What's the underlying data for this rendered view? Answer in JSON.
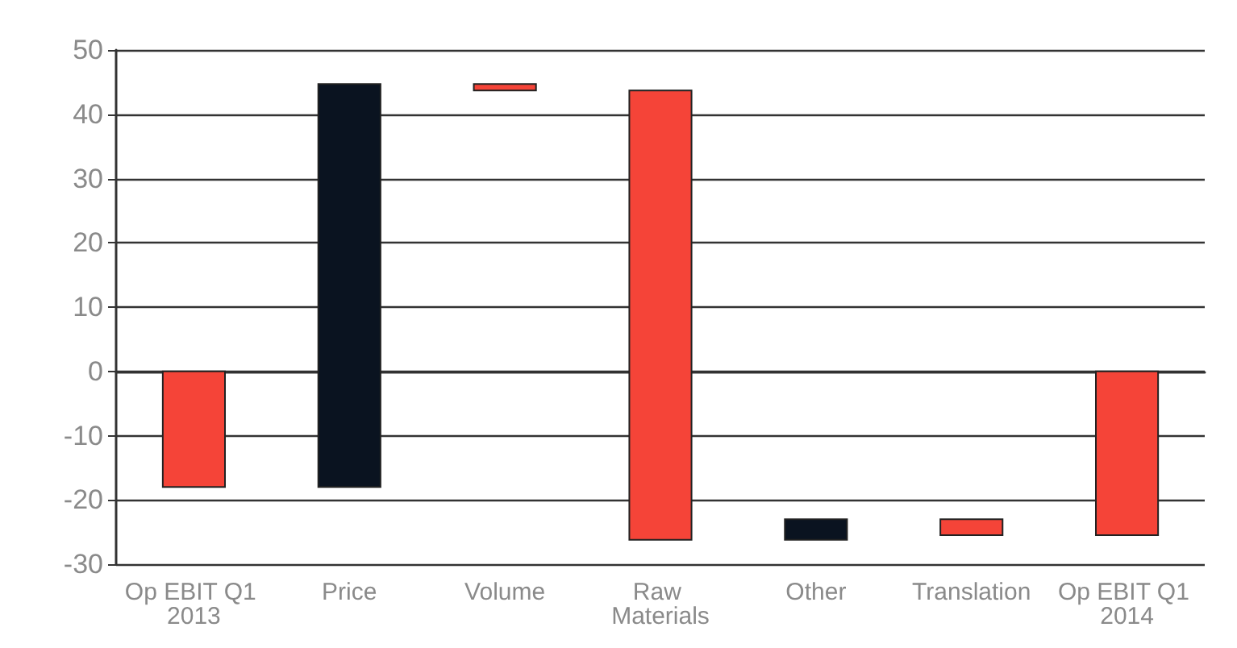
{
  "chart_data": {
    "type": "bar",
    "categories": [
      "Op EBIT Q1 2013",
      "Price",
      "Volume",
      "Raw Materials",
      "Other",
      "Translation",
      "Op EBIT Q1 2014"
    ],
    "base": [
      0,
      -18,
      44.7,
      43.7,
      -26.2,
      -23,
      0
    ],
    "values": [
      -18,
      62.7,
      -1,
      -69.9,
      3.2,
      -2.5,
      -25.5
    ],
    "colors": [
      "#f54438",
      "#0a1320",
      "#f54438",
      "#f54438",
      "#0a1320",
      "#f54438",
      "#f54438"
    ],
    "ylim": [
      -30,
      50
    ],
    "yticks": [
      -30,
      -20,
      -10,
      0,
      10,
      20,
      30,
      40,
      50
    ],
    "grid": "y"
  }
}
